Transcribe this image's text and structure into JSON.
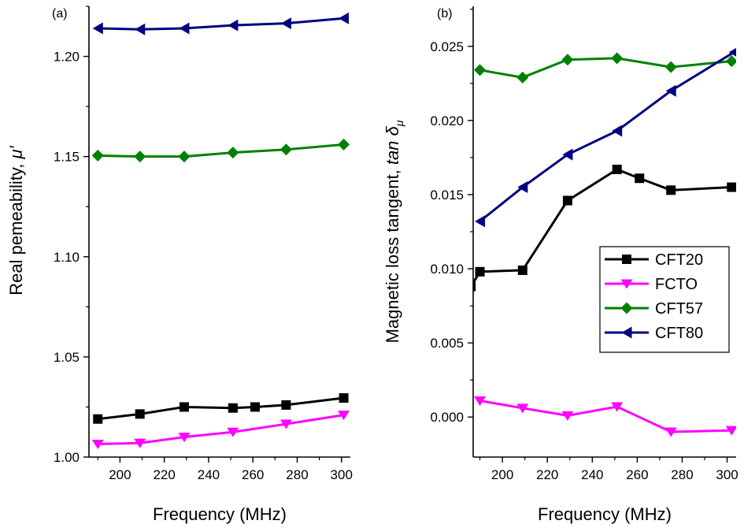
{
  "chart_data": [
    {
      "type": "line",
      "panel_label": "(a)",
      "xlabel": "Frequency (MHz)",
      "ylabel": "Real pemeability, ",
      "ylabel_symbol": "μ′",
      "xlim": [
        186,
        304
      ],
      "ylim": [
        1.0,
        1.225
      ],
      "xticks": [
        200,
        220,
        240,
        260,
        280,
        300
      ],
      "yticks": [
        1.0,
        1.05,
        1.1,
        1.15,
        1.2
      ],
      "ytick_labels": [
        "1.00",
        "1.05",
        "1.10",
        "1.15",
        "1.20"
      ],
      "series": [
        {
          "name": "CFT20",
          "color": "#000000",
          "marker": "square",
          "x": [
            190,
            209,
            229,
            251,
            261,
            275,
            301
          ],
          "y": [
            1.019,
            1.0215,
            1.025,
            1.0245,
            1.025,
            1.026,
            1.0295
          ]
        },
        {
          "name": "FCTO",
          "color": "#ff00ff",
          "marker": "triangle-down",
          "x": [
            190,
            209,
            229,
            251,
            275,
            301
          ],
          "y": [
            1.0065,
            1.007,
            1.01,
            1.0125,
            1.0165,
            1.021
          ]
        },
        {
          "name": "CFT57",
          "color": "#008000",
          "marker": "diamond",
          "x": [
            190,
            209,
            229,
            251,
            275,
            301
          ],
          "y": [
            1.1505,
            1.15,
            1.15,
            1.152,
            1.1535,
            1.156
          ]
        },
        {
          "name": "CFT80",
          "color": "#000080",
          "marker": "triangle-left",
          "x": [
            190,
            209,
            229,
            251,
            275,
            301
          ],
          "y": [
            1.214,
            1.2135,
            1.214,
            1.2155,
            1.2165,
            1.219
          ]
        }
      ]
    },
    {
      "type": "line",
      "panel_label": "(b)",
      "xlabel": "Frequency (MHz)",
      "ylabel": "Magnetic loss tangent, ",
      "ylabel_symbol": "tan δ",
      "ylabel_subscript": "μ",
      "xlim": [
        187,
        304
      ],
      "ylim": [
        -0.0027,
        0.0277
      ],
      "xticks": [
        200,
        220,
        240,
        260,
        280,
        300
      ],
      "yticks": [
        0.0,
        0.005,
        0.01,
        0.015,
        0.02,
        0.025
      ],
      "ytick_labels": [
        "0.000",
        "0.005",
        "0.010",
        "0.015",
        "0.020",
        "0.025"
      ],
      "legend": {
        "position": "center-right",
        "entries": [
          "CFT20",
          "FCTO",
          "CFT57",
          "CFT80"
        ]
      },
      "series": [
        {
          "name": "CFT20",
          "color": "#000000",
          "marker": "square",
          "x": [
            186,
            190,
            209,
            229,
            251,
            261,
            275,
            302
          ],
          "y": [
            0.0088,
            0.0098,
            0.0099,
            0.0146,
            0.0167,
            0.0161,
            0.0153,
            0.0155
          ]
        },
        {
          "name": "FCTO",
          "color": "#ff00ff",
          "marker": "triangle-down",
          "x": [
            190,
            209,
            229,
            251,
            275,
            302
          ],
          "y": [
            0.0011,
            0.0006,
            0.0001,
            0.0007,
            -0.001,
            -0.0009
          ]
        },
        {
          "name": "CFT57",
          "color": "#008000",
          "marker": "diamond",
          "x": [
            190,
            209,
            229,
            251,
            275,
            302
          ],
          "y": [
            0.0234,
            0.0229,
            0.0241,
            0.0242,
            0.0236,
            0.024
          ]
        },
        {
          "name": "CFT80",
          "color": "#000080",
          "marker": "triangle-left",
          "x": [
            190,
            209,
            229,
            251,
            275,
            303
          ],
          "y": [
            0.0132,
            0.0155,
            0.0177,
            0.0193,
            0.022,
            0.0246
          ]
        }
      ]
    }
  ]
}
